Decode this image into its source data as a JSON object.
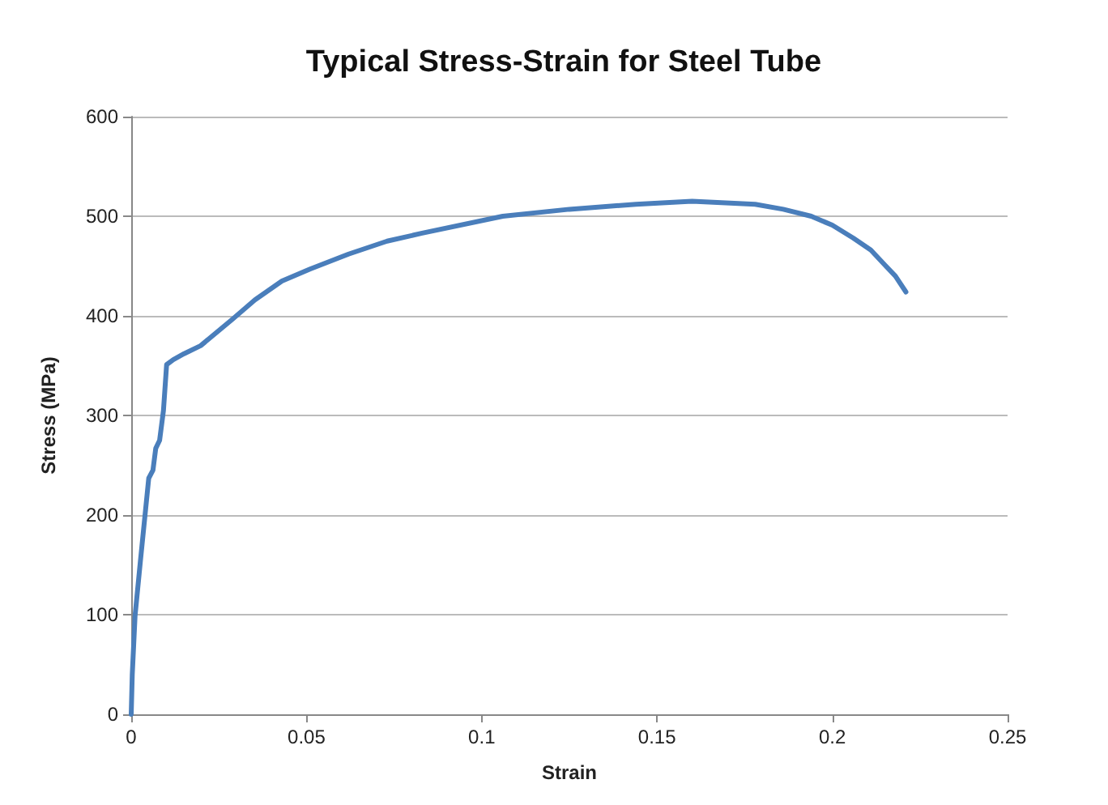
{
  "chart_data": {
    "type": "line",
    "title": "Typical Stress-Strain for Steel Tube",
    "xlabel": "Strain",
    "ylabel": "Stress (MPa)",
    "xlim": [
      0,
      0.25
    ],
    "xticks": [
      0,
      0.05,
      0.1,
      0.15,
      0.2,
      0.25
    ],
    "ylim": [
      0,
      600
    ],
    "yticks": [
      0,
      100,
      200,
      300,
      400,
      500,
      600
    ],
    "grid": "y",
    "marker": "none",
    "line_style": "solid",
    "series": [
      {
        "color": "#4a7ebb",
        "x": [
          0,
          0.0003,
          0.0011,
          0.0026,
          0.005,
          0.0062,
          0.007,
          0.0081,
          0.0092,
          0.0101,
          0.012,
          0.0151,
          0.0198,
          0.029,
          0.0353,
          0.043,
          0.051,
          0.062,
          0.073,
          0.083,
          0.106,
          0.125,
          0.144,
          0.16,
          0.178,
          0.186,
          0.194,
          0.2,
          0.206,
          0.211,
          0.215,
          0.218,
          0.221
        ],
        "values": [
          0,
          40,
          99,
          153,
          237,
          245,
          267,
          275,
          305,
          351,
          356,
          362,
          370,
          397,
          416,
          435,
          447,
          462,
          475,
          483,
          500,
          507,
          512,
          515,
          512,
          507,
          500,
          491,
          478,
          466,
          451,
          440,
          424
        ]
      }
    ]
  }
}
